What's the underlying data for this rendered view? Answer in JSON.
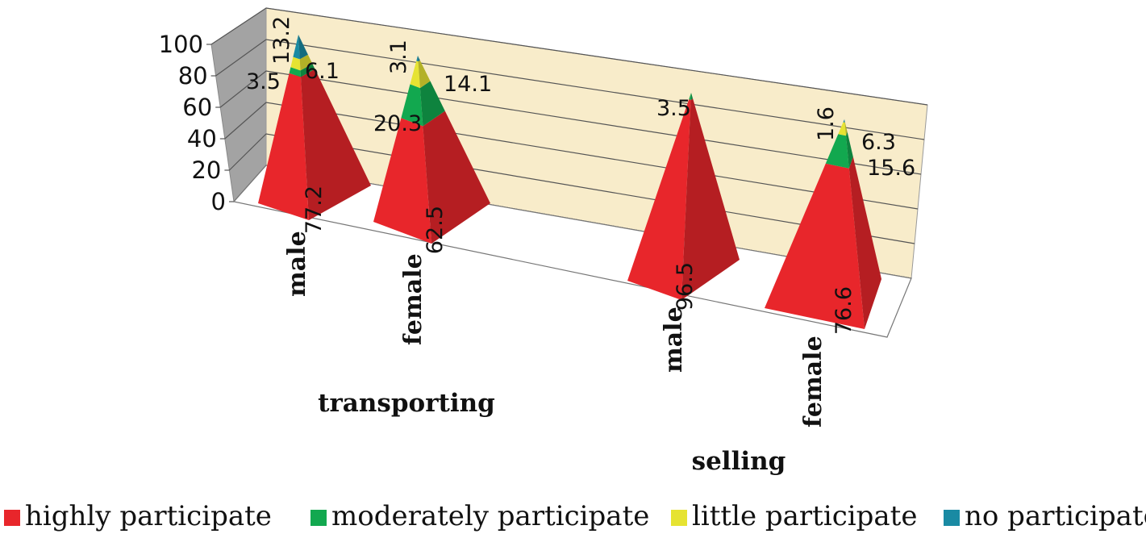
{
  "chart_data": {
    "type": "bar",
    "style": "3d-stacked-pyramid",
    "ylim": [
      0,
      100
    ],
    "yticks": [
      "0",
      "20",
      "40",
      "60",
      "80",
      "100"
    ],
    "groups": [
      {
        "label": "transporting",
        "categories": [
          "male",
          "female"
        ]
      },
      {
        "label": "selling",
        "categories": [
          "male",
          "female"
        ]
      }
    ],
    "categories": [
      "male",
      "female",
      "male",
      "female"
    ],
    "series": [
      {
        "name": "highly participate",
        "color": "#e8262b",
        "values": [
          77.2,
          62.5,
          96.5,
          76.6
        ]
      },
      {
        "name": "moderately participate",
        "color": "#12a84f",
        "values": [
          3.5,
          20.3,
          3.5,
          15.6
        ]
      },
      {
        "name": "little participate",
        "color": "#e6e332",
        "values": [
          6.1,
          14.1,
          null,
          6.3
        ]
      },
      {
        "name": "no participate",
        "color": "#1a8aa3",
        "values": [
          13.2,
          3.1,
          null,
          1.6
        ]
      }
    ],
    "data_labels": [
      [
        "77.2",
        "3.5",
        "6.1",
        "13.2"
      ],
      [
        "62.5",
        "20.3",
        "14.1",
        "3.1"
      ],
      [
        "96.5",
        "3.5",
        "",
        ""
      ],
      [
        "76.6",
        "15.6",
        "6.3",
        "1.6"
      ]
    ],
    "legend_position": "bottom",
    "grid": true
  }
}
